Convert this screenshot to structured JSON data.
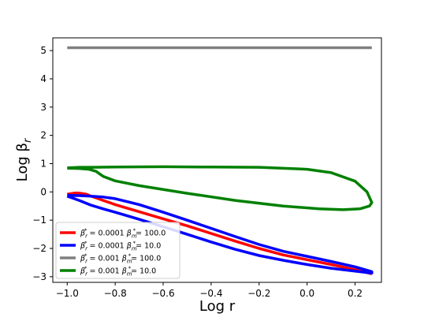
{
  "chart_data": {
    "type": "line",
    "title": "",
    "xlabel": "Log r",
    "ylabel": "Log β_r",
    "ylabel_parts": {
      "base": "Log β",
      "sub": "r"
    },
    "xlim": [
      -1.06,
      0.31
    ],
    "ylim": [
      -3.2,
      5.45
    ],
    "xticks": [
      -1.0,
      -0.8,
      -0.6,
      -0.4,
      -0.2,
      0.0,
      0.2
    ],
    "xtick_labels": [
      "−1.0",
      "−0.8",
      "−0.6",
      "−0.4",
      "−0.2",
      "0.0",
      "0.2"
    ],
    "yticks": [
      -3,
      -2,
      -1,
      0,
      1,
      2,
      3,
      4,
      5
    ],
    "ytick_labels": [
      "−3",
      "−2",
      "−1",
      "0",
      "1",
      "2",
      "3",
      "4",
      "5"
    ],
    "grid": false,
    "legend_position": "lower-left",
    "series": [
      {
        "name": "β_r^* = 0.0001 β_m^* = 100.0",
        "legend": {
          "b1": "β",
          "s1": "r",
          "u1": "*",
          "v1": "= 0.0001",
          "b2": "β",
          "s2": "m",
          "u2": "*",
          "v2": "= 100.0"
        },
        "color": "#ff0000",
        "x": [
          -1.0,
          -0.97,
          -0.95,
          -0.92,
          -0.9,
          -0.85,
          -0.8,
          -0.7,
          -0.6,
          -0.5,
          -0.4,
          -0.3,
          -0.2,
          -0.1,
          0.0,
          0.1,
          0.2,
          0.27
        ],
        "y": [
          -0.08,
          -0.04,
          -0.04,
          -0.08,
          -0.15,
          -0.3,
          -0.45,
          -0.7,
          -0.95,
          -1.2,
          -1.47,
          -1.74,
          -2.0,
          -2.23,
          -2.4,
          -2.57,
          -2.75,
          -2.9
        ]
      },
      {
        "name": "β_r^* = 0.0001 β_m^* = 10.0",
        "legend": {
          "b1": "β",
          "s1": "r",
          "u1": "*",
          "v1": "= 0.0001",
          "b2": "β",
          "s2": "m",
          "u2": "*",
          "v2": "= 10.0"
        },
        "color": "#0000ff",
        "x": [
          -1.0,
          -0.95,
          -0.9,
          -0.85,
          -0.8,
          -0.7,
          -0.6,
          -0.5,
          -0.4,
          -0.3,
          -0.2,
          -0.1,
          0.0,
          0.1,
          0.2,
          0.27,
          0.27,
          0.2,
          0.1,
          0.0,
          -0.1,
          -0.2,
          -0.3,
          -0.4,
          -0.5,
          -0.6,
          -0.7,
          -0.8,
          -0.85,
          -0.9,
          -0.95,
          -1.0
        ],
        "y": [
          -0.12,
          -0.13,
          -0.15,
          -0.18,
          -0.24,
          -0.45,
          -0.72,
          -1.0,
          -1.29,
          -1.58,
          -1.86,
          -2.1,
          -2.28,
          -2.46,
          -2.65,
          -2.82,
          -2.87,
          -2.8,
          -2.7,
          -2.57,
          -2.42,
          -2.25,
          -2.03,
          -1.77,
          -1.5,
          -1.23,
          -0.97,
          -0.72,
          -0.6,
          -0.47,
          -0.3,
          -0.15
        ]
      },
      {
        "name": "β_r^* = 0.001 β_m^* = 100.0",
        "legend": {
          "b1": "β",
          "s1": "r",
          "u1": "*",
          "v1": "= 0.001",
          "b2": "β",
          "s2": "m",
          "u2": "*",
          "v2": "= 100.0"
        },
        "color": "#808080",
        "x": [
          -1.0,
          0.27
        ],
        "y": [
          5.1,
          5.1
        ]
      },
      {
        "name": "β_r^* = 0.001 β_m^* = 10.0",
        "legend": {
          "b1": "β",
          "s1": "r",
          "u1": "*",
          "v1": "= 0.001",
          "b2": "β",
          "s2": "m",
          "u2": "*",
          "v2": "= 10.0"
        },
        "color": "#008000",
        "x": [
          -1.0,
          -0.95,
          -0.9,
          -0.8,
          -0.6,
          -0.4,
          -0.2,
          0.0,
          0.1,
          0.2,
          0.25,
          0.27,
          0.26,
          0.22,
          0.15,
          0.05,
          -0.1,
          -0.3,
          -0.5,
          -0.7,
          -0.8,
          -0.85,
          -0.88,
          -0.91,
          -0.95,
          -1.0
        ],
        "y": [
          0.85,
          0.87,
          0.87,
          0.88,
          0.89,
          0.88,
          0.87,
          0.8,
          0.68,
          0.38,
          0.0,
          -0.38,
          -0.5,
          -0.6,
          -0.63,
          -0.6,
          -0.5,
          -0.3,
          -0.05,
          0.22,
          0.39,
          0.55,
          0.73,
          0.8,
          0.83,
          0.84
        ]
      }
    ]
  }
}
